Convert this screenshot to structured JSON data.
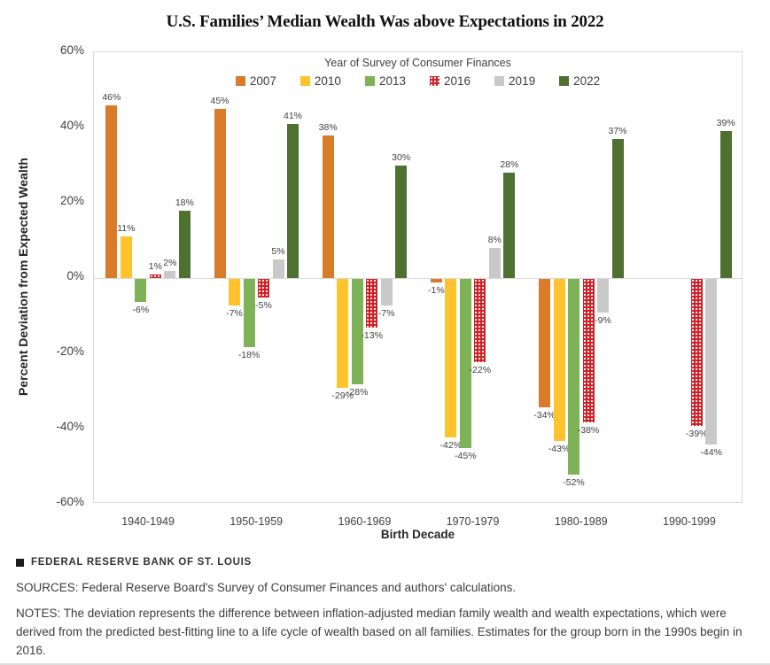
{
  "page": {
    "brand": "FEDERAL RESERVE BANK OF ST. LOUIS",
    "sources": "SOURCES: Federal Reserve Board's Survey of Consumer Finances and authors' calculations.",
    "notes": "NOTES: The deviation represents the difference between inflation-adjusted median family wealth and wealth expectations, which were derived from the predicted best-fitting line to a life cycle of wealth based on all families. Estimates for the group born in the 1990s begin in 2016."
  },
  "chart_data": {
    "type": "bar",
    "title": "U.S. Families’ Median Wealth Was above Expectations in 2022",
    "legend_title": "Year of Survey of Consumer Finances",
    "legend_position": "top-center-inside",
    "xlabel": "Birth Decade",
    "ylabel": "Percent Deviation from Expected Wealth",
    "ylim": [
      -60,
      60
    ],
    "yticks": [
      60,
      40,
      20,
      0,
      -20,
      -40,
      -60
    ],
    "ytick_suffix": "%",
    "grid": false,
    "categories": [
      "1940-1949",
      "1950-1959",
      "1960-1969",
      "1970-1979",
      "1980-1989",
      "1990-1999"
    ],
    "series": [
      {
        "name": "2007",
        "color": "#D87C2A",
        "pattern": "solid",
        "values": [
          46,
          45,
          38,
          -1,
          -34,
          null
        ]
      },
      {
        "name": "2010",
        "color": "#FEC32D",
        "pattern": "solid",
        "values": [
          11,
          -7,
          -29,
          -42,
          -43,
          null
        ]
      },
      {
        "name": "2013",
        "color": "#7DB356",
        "pattern": "solid",
        "values": [
          -6,
          -18,
          -28,
          -45,
          -52,
          null
        ]
      },
      {
        "name": "2016",
        "color": "#CE2127",
        "pattern": "dots",
        "values": [
          1,
          -5,
          -13,
          -22,
          -38,
          -39
        ]
      },
      {
        "name": "2019",
        "color": "#C9C9C9",
        "pattern": "solid",
        "values": [
          2,
          5,
          -7,
          8,
          -9,
          -44
        ]
      },
      {
        "name": "2022",
        "color": "#4E7030",
        "pattern": "solid",
        "values": [
          18,
          41,
          30,
          28,
          37,
          39
        ]
      }
    ]
  }
}
